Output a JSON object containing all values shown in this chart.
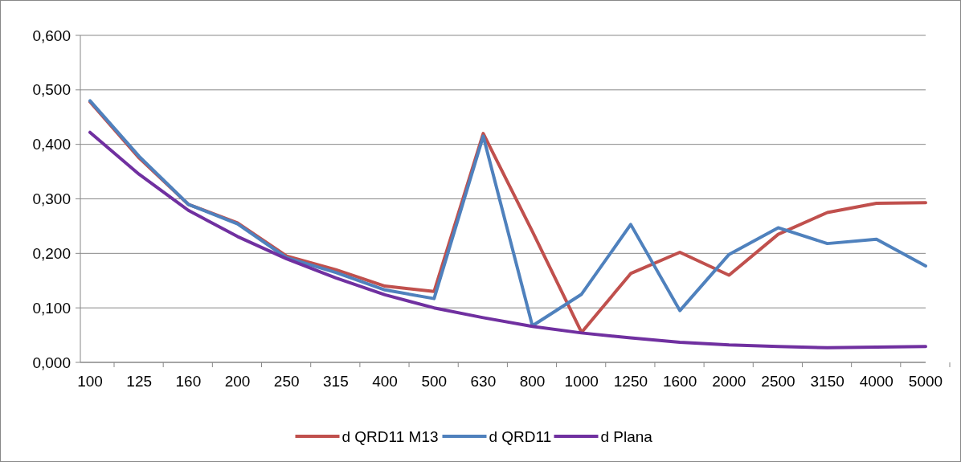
{
  "chart_data": {
    "type": "line",
    "categories": [
      "100",
      "125",
      "160",
      "200",
      "250",
      "315",
      "400",
      "500",
      "630",
      "800",
      "1000",
      "1250",
      "1600",
      "2000",
      "2500",
      "3150",
      "4000",
      "5000"
    ],
    "series": [
      {
        "name": "d QRD11 M13",
        "color": "#c0504d",
        "values": [
          0.478,
          0.375,
          0.29,
          0.256,
          0.195,
          0.17,
          0.14,
          0.13,
          0.42,
          0.24,
          0.055,
          0.163,
          0.202,
          0.16,
          0.235,
          0.275,
          0.292,
          0.293
        ]
      },
      {
        "name": "d QRD11",
        "color": "#4f81bd",
        "values": [
          0.48,
          0.378,
          0.29,
          0.254,
          0.192,
          0.165,
          0.133,
          0.117,
          0.415,
          0.067,
          0.125,
          0.253,
          0.095,
          0.198,
          0.247,
          0.218,
          0.226,
          0.177
        ]
      },
      {
        "name": "d Plana",
        "color": "#7030a0",
        "values": [
          0.422,
          0.345,
          0.279,
          0.231,
          0.19,
          0.155,
          0.124,
          0.1,
          0.082,
          0.066,
          0.054,
          0.045,
          0.037,
          0.032,
          0.029,
          0.027,
          0.028,
          0.029
        ]
      }
    ],
    "ylim": [
      0,
      0.6
    ],
    "yticks": [
      {
        "value": 0,
        "label": "0,000"
      },
      {
        "value": 0.1,
        "label": "0,100"
      },
      {
        "value": 0.2,
        "label": "0,200"
      },
      {
        "value": 0.3,
        "label": "0,300"
      },
      {
        "value": 0.4,
        "label": "0,400"
      },
      {
        "value": 0.5,
        "label": "0,500"
      },
      {
        "value": 0.6,
        "label": "0,600"
      }
    ],
    "grid": "y",
    "legend": "bottom",
    "marker": "none",
    "line_style": "solid"
  }
}
